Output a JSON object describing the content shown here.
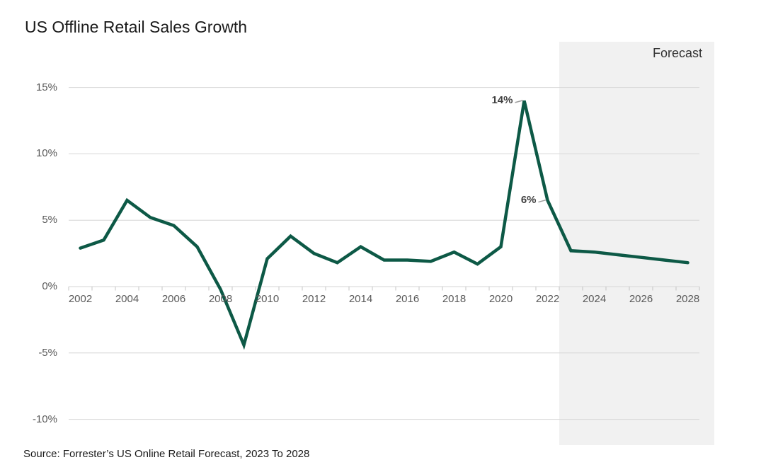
{
  "title": "US Offline Retail Sales Growth",
  "source_note": "Source: Forrester’s US Online Retail Forecast, 2023 To 2028",
  "forecast_label": "Forecast",
  "colors": {
    "line": "#0d5946",
    "gridline": "#d6d6d6",
    "axis_tick": "#c4c4c4",
    "axis_text": "#595959",
    "title_text": "#1a1a1a",
    "annotation_text": "#404040",
    "annotation_leader": "#9d9d9d",
    "forecast_band": "#f1f1f1",
    "forecast_text": "#333333",
    "source_text": "#1a1a1a"
  },
  "chart_data": {
    "type": "line",
    "title": "US Offline Retail Sales Growth",
    "xlabel": "",
    "ylabel": "",
    "grid": true,
    "legend_position": "none",
    "ylim": [
      -10,
      15
    ],
    "x_range": [
      2001.5,
      2028.5
    ],
    "x": [
      2002,
      2003,
      2004,
      2005,
      2006,
      2007,
      2008,
      2009,
      2010,
      2011,
      2012,
      2013,
      2014,
      2015,
      2016,
      2017,
      2018,
      2019,
      2020,
      2021,
      2022,
      2023,
      2024,
      2025,
      2026,
      2027,
      2028
    ],
    "series": [
      {
        "name": "US offline retail sales growth (%)",
        "values": [
          2.9,
          3.5,
          6.5,
          5.2,
          4.6,
          3.0,
          -0.2,
          -4.4,
          2.1,
          3.8,
          2.5,
          1.8,
          3.0,
          2.0,
          2.0,
          1.9,
          2.6,
          1.7,
          3.0,
          14.0,
          6.5,
          2.7,
          2.6,
          2.4,
          2.2,
          2.0,
          1.8
        ]
      }
    ],
    "y_ticks": [
      {
        "value": 15,
        "label": "15%"
      },
      {
        "value": 10,
        "label": "10%"
      },
      {
        "value": 5,
        "label": "5%"
      },
      {
        "value": 0,
        "label": "0%"
      },
      {
        "value": -5,
        "label": "-5%"
      },
      {
        "value": -10,
        "label": "-10%"
      }
    ],
    "x_tick_labels": [
      {
        "value": 2002,
        "label": "2002"
      },
      {
        "value": 2004,
        "label": "2004"
      },
      {
        "value": 2006,
        "label": "2006"
      },
      {
        "value": 2008,
        "label": "2008"
      },
      {
        "value": 2010,
        "label": "2010"
      },
      {
        "value": 2012,
        "label": "2012"
      },
      {
        "value": 2014,
        "label": "2014"
      },
      {
        "value": 2016,
        "label": "2016"
      },
      {
        "value": 2018,
        "label": "2018"
      },
      {
        "value": 2020,
        "label": "2020"
      },
      {
        "value": 2022,
        "label": "2022"
      },
      {
        "value": 2024,
        "label": "2024"
      },
      {
        "value": 2026,
        "label": "2026"
      },
      {
        "value": 2028,
        "label": "2028"
      }
    ],
    "annotations": [
      {
        "text": "14%",
        "x": 2021,
        "y": 14.0
      },
      {
        "text": "6%",
        "x": 2022,
        "y": 6.5
      }
    ],
    "forecast_region": {
      "x_start": 2022.5,
      "label": "Forecast"
    }
  }
}
